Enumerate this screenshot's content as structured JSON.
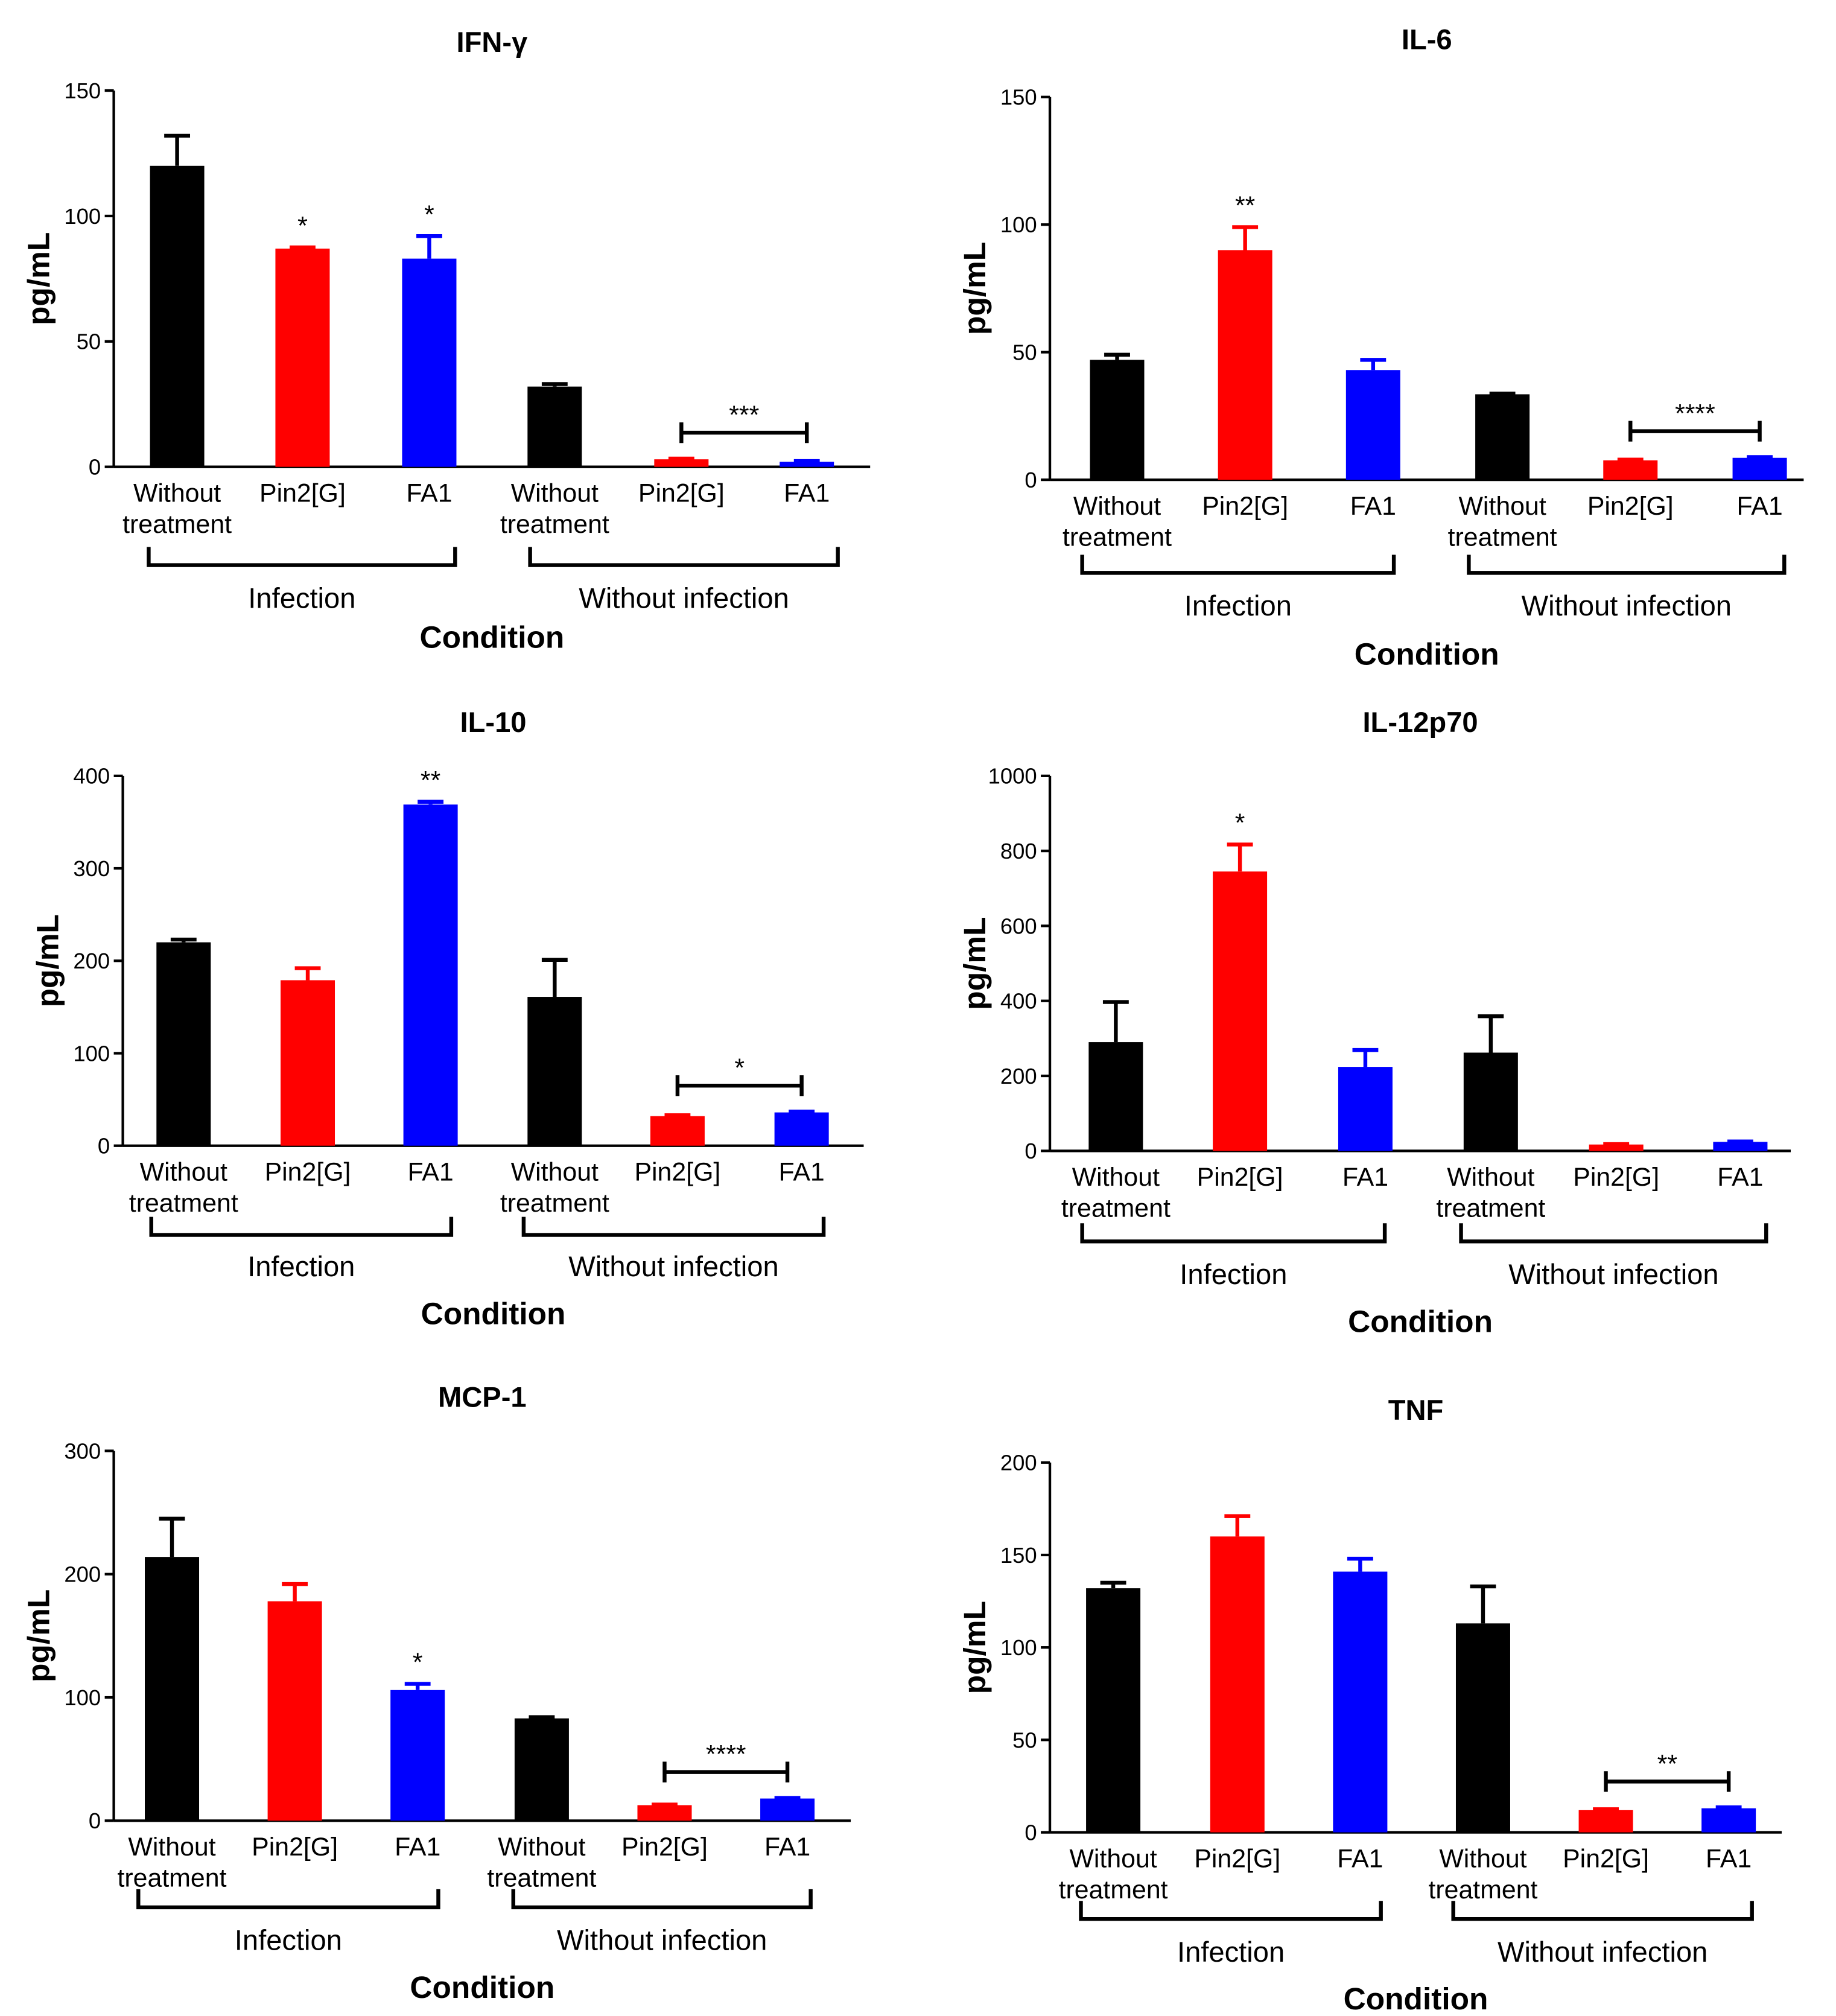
{
  "chart_data": [
    {
      "type": "bar",
      "title": "IFN-γ",
      "ylabel": "pg/mL",
      "xlabel": "Condition",
      "ylim": [
        0,
        150
      ],
      "yticks": [
        0,
        50,
        100,
        150
      ],
      "categories": [
        "Without treatment",
        "Pin2[G]",
        "FA1",
        "Without treatment",
        "Pin2[G]",
        "FA1"
      ],
      "groups": [
        "Infection",
        "Without infection"
      ],
      "values": [
        120,
        87,
        83,
        32,
        3,
        2
      ],
      "errors": [
        12,
        0.5,
        9,
        1,
        0.3,
        0.3
      ],
      "colors": [
        "#000000",
        "#ff0000",
        "#0000ff",
        "#000000",
        "#ff0000",
        "#0000ff"
      ],
      "significance": [
        {
          "bar": 1,
          "label": "*"
        },
        {
          "bar": 2,
          "label": "*"
        },
        {
          "bracket": [
            4,
            5
          ],
          "label": "***"
        }
      ]
    },
    {
      "type": "bar",
      "title": "IL-6",
      "ylabel": "pg/mL",
      "xlabel": "Condition",
      "ylim": [
        0,
        150
      ],
      "yticks": [
        0,
        50,
        100,
        150
      ],
      "categories": [
        "Without treatment",
        "Pin2[G]",
        "FA1",
        "Without treatment",
        "Pin2[G]",
        "FA1"
      ],
      "groups": [
        "Infection",
        "Without infection"
      ],
      "values": [
        47,
        90,
        43,
        33.5,
        7.6,
        8.6
      ],
      "errors": [
        2,
        9,
        4,
        0.3,
        0.3,
        0.3
      ],
      "colors": [
        "#000000",
        "#ff0000",
        "#0000ff",
        "#000000",
        "#ff0000",
        "#0000ff"
      ],
      "significance": [
        {
          "bar": 1,
          "label": "**"
        },
        {
          "bracket": [
            4,
            5
          ],
          "label": "****"
        }
      ]
    },
    {
      "type": "bar",
      "title": "IL-10",
      "ylabel": "pg/mL",
      "xlabel": "Condition",
      "ylim": [
        0,
        400
      ],
      "yticks": [
        0,
        100,
        200,
        300,
        400
      ],
      "categories": [
        "Without treatment",
        "Pin2[G]",
        "FA1",
        "Without treatment",
        "Pin2[G]",
        "FA1"
      ],
      "groups": [
        "Infection",
        "Without infection"
      ],
      "values": [
        220,
        179,
        369,
        161,
        32,
        36
      ],
      "errors": [
        3,
        13,
        3,
        40,
        1,
        1
      ],
      "colors": [
        "#000000",
        "#ff0000",
        "#0000ff",
        "#000000",
        "#ff0000",
        "#0000ff"
      ],
      "significance": [
        {
          "bar": 2,
          "label": "**"
        },
        {
          "bracket": [
            4,
            5
          ],
          "label": "*"
        }
      ]
    },
    {
      "type": "bar",
      "title": "IL-12p70",
      "ylabel": "pg/mL",
      "xlabel": "Condition",
      "ylim": [
        0,
        1000
      ],
      "yticks": [
        0,
        200,
        400,
        600,
        800,
        1000
      ],
      "categories": [
        "Without treatment",
        "Pin2[G]",
        "FA1",
        "Without treatment",
        "Pin2[G]",
        "FA1"
      ],
      "groups": [
        "Infection",
        "Without infection"
      ],
      "values": [
        290,
        745,
        224,
        262,
        17,
        24
      ],
      "errors": [
        107,
        72,
        45,
        97,
        1,
        1
      ],
      "colors": [
        "#000000",
        "#ff0000",
        "#0000ff",
        "#000000",
        "#ff0000",
        "#0000ff"
      ],
      "significance": [
        {
          "bar": 1,
          "label": "*"
        }
      ]
    },
    {
      "type": "bar",
      "title": "MCP-1",
      "ylabel": "pg/mL",
      "xlabel": "Condition",
      "ylim": [
        0,
        300
      ],
      "yticks": [
        0,
        100,
        200,
        300
      ],
      "categories": [
        "Without treatment",
        "Pin2[G]",
        "FA1",
        "Without treatment",
        "Pin2[G]",
        "FA1"
      ],
      "groups": [
        "Infection",
        "Without infection"
      ],
      "values": [
        214,
        178,
        106,
        83,
        12.6,
        18
      ],
      "errors": [
        31,
        14,
        5,
        1,
        0.5,
        0.5
      ],
      "colors": [
        "#000000",
        "#ff0000",
        "#0000ff",
        "#000000",
        "#ff0000",
        "#0000ff"
      ],
      "significance": [
        {
          "bar": 2,
          "label": "*"
        },
        {
          "bracket": [
            4,
            5
          ],
          "label": "****"
        }
      ]
    },
    {
      "type": "bar",
      "title": "TNF",
      "ylabel": "pg/mL",
      "xlabel": "Condition",
      "ylim": [
        0,
        200
      ],
      "yticks": [
        0,
        50,
        100,
        150,
        200
      ],
      "categories": [
        "Without treatment",
        "Pin2[G]",
        "FA1",
        "Without treatment",
        "Pin2[G]",
        "FA1"
      ],
      "groups": [
        "Infection",
        "Without infection"
      ],
      "values": [
        132,
        160,
        141,
        113,
        12,
        13
      ],
      "errors": [
        3,
        11,
        7,
        20,
        0.5,
        0.5
      ],
      "colors": [
        "#000000",
        "#ff0000",
        "#0000ff",
        "#000000",
        "#ff0000",
        "#0000ff"
      ],
      "significance": [
        {
          "bracket": [
            4,
            5
          ],
          "label": "**"
        }
      ]
    }
  ]
}
